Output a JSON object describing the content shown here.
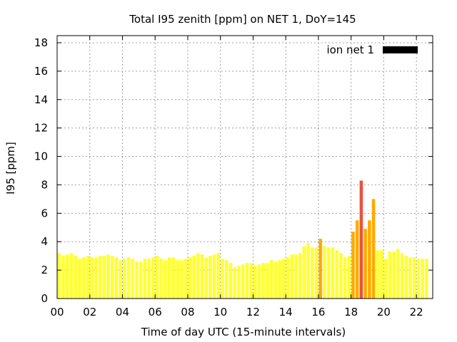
{
  "chart_data": {
    "type": "bar",
    "title": "Total I95 zenith [ppm] on NET 1, DoY=145",
    "xlabel": "Time of day UTC (15-minute intervals)",
    "ylabel": "I95 [ppm]",
    "xlim": [
      0,
      23
    ],
    "ylim": [
      0,
      18.5
    ],
    "x_ticks": [
      {
        "value": 0,
        "label": "00"
      },
      {
        "value": 2,
        "label": "02"
      },
      {
        "value": 4,
        "label": "04"
      },
      {
        "value": 6,
        "label": "06"
      },
      {
        "value": 8,
        "label": "08"
      },
      {
        "value": 10,
        "label": "10"
      },
      {
        "value": 12,
        "label": "12"
      },
      {
        "value": 14,
        "label": "14"
      },
      {
        "value": 16,
        "label": "16"
      },
      {
        "value": 18,
        "label": "18"
      },
      {
        "value": 20,
        "label": "20"
      },
      {
        "value": 22,
        "label": "22"
      }
    ],
    "y_ticks": [
      0,
      2,
      4,
      6,
      8,
      10,
      12,
      14,
      16,
      18
    ],
    "grid": true,
    "legend": {
      "position": "top-right",
      "entries": [
        {
          "label": "ion net 1",
          "color": "#000000"
        }
      ]
    },
    "bar_interval_hours": 0.25,
    "colors": {
      "low": "#ffff33",
      "mid": "#ffaa00",
      "high": "#e8543c"
    },
    "series": [
      {
        "name": "ion net 1",
        "values": [
          3.2,
          3.0,
          3.1,
          3.2,
          3.0,
          2.8,
          2.9,
          3.0,
          2.9,
          2.9,
          3.0,
          3.0,
          3.1,
          3.0,
          2.9,
          2.7,
          2.8,
          2.9,
          2.8,
          2.6,
          2.6,
          2.8,
          2.8,
          2.9,
          3.0,
          2.8,
          2.7,
          2.9,
          2.9,
          2.7,
          2.7,
          2.8,
          2.9,
          3.0,
          3.2,
          3.1,
          2.9,
          3.0,
          3.1,
          3.2,
          2.8,
          2.7,
          2.5,
          2.2,
          2.3,
          2.4,
          2.5,
          2.5,
          2.3,
          2.4,
          2.5,
          2.5,
          2.7,
          2.6,
          2.7,
          2.8,
          2.9,
          3.1,
          3.1,
          3.2,
          3.7,
          3.9,
          3.6,
          3.6,
          4.2,
          3.7,
          3.6,
          3.6,
          3.4,
          3.2,
          2.9,
          3.0,
          4.7,
          5.5,
          8.3,
          4.9,
          5.5,
          7.0,
          3.4,
          3.4,
          2.8,
          3.3,
          3.3,
          3.5,
          3.2,
          3.0,
          2.9,
          2.9,
          2.8,
          2.8,
          2.8
        ]
      }
    ]
  }
}
